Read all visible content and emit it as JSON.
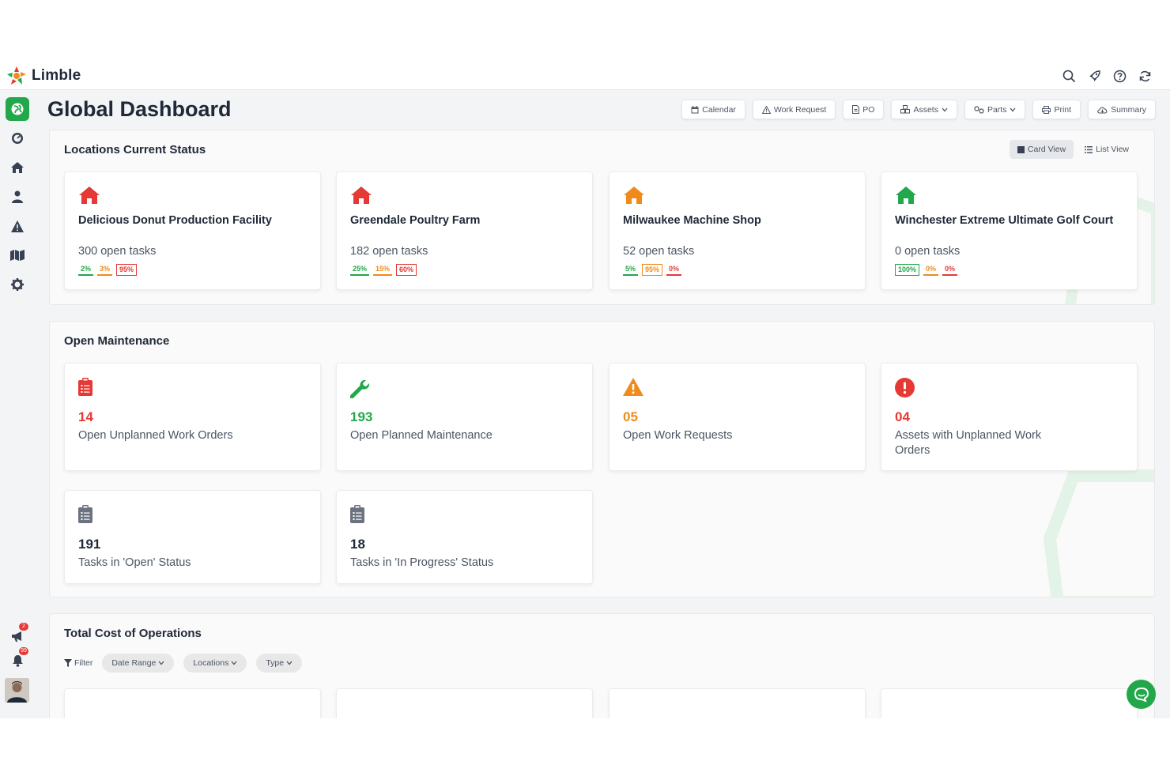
{
  "app": {
    "name": "Limble"
  },
  "header": {
    "title": "Global Dashboard",
    "toolbar": [
      {
        "label": "Calendar",
        "icon": "calendar-icon"
      },
      {
        "label": "Work Request",
        "icon": "warning-icon"
      },
      {
        "label": "PO",
        "icon": "document-icon"
      },
      {
        "label": "Assets",
        "icon": "cubes-icon"
      },
      {
        "label": "Parts",
        "icon": "gears-icon"
      },
      {
        "label": "Print",
        "icon": "printer-icon"
      },
      {
        "label": "Summary",
        "icon": "cloud-icon"
      }
    ]
  },
  "sidebar": {
    "items": [
      "globe-icon",
      "dashboard-icon",
      "home-icon",
      "user-icon",
      "warning-icon",
      "map-icon",
      "gear-icon"
    ],
    "bottom": [
      {
        "icon": "megaphone-icon",
        "badge": "2"
      },
      {
        "icon": "bell-icon",
        "badge": "99"
      }
    ]
  },
  "locations": {
    "title": "Locations Current Status",
    "views": [
      "Card View",
      "List View"
    ],
    "cards": [
      {
        "name": "Delicious Donut Production Facility",
        "tasks": "300 open tasks",
        "color": "#e53935",
        "pcts": [
          "2%",
          "3%",
          "95%"
        ]
      },
      {
        "name": "Greendale Poultry Farm",
        "tasks": "182 open tasks",
        "color": "#e53935",
        "pcts": [
          "25%",
          "15%",
          "60%"
        ]
      },
      {
        "name": "Milwaukee Machine Shop",
        "tasks": "52 open tasks",
        "color": "#f08a1c",
        "pcts": [
          "5%",
          "95%",
          "0%"
        ]
      },
      {
        "name": "Winchester Extreme Ultimate Golf Court",
        "tasks": "0 open tasks",
        "color": "#22a84a",
        "pcts": [
          "100%",
          "0%",
          "0%"
        ]
      }
    ]
  },
  "maintenance": {
    "title": "Open Maintenance",
    "cards": [
      {
        "count": "14",
        "label": "Open Unplanned Work Orders",
        "icon": "clipboard-icon",
        "color": "#e53935"
      },
      {
        "count": "193",
        "label": "Open Planned Maintenance",
        "icon": "wrench-icon",
        "color": "#22a84a"
      },
      {
        "count": "05",
        "label": "Open Work Requests",
        "icon": "warning-icon",
        "color": "#f08a1c"
      },
      {
        "count": "04",
        "label": "Assets with Unplanned Work Orders",
        "icon": "alert-circle-icon",
        "color": "#e53935"
      },
      {
        "count": "191",
        "label": "Tasks in 'Open' Status",
        "icon": "clipboard-icon",
        "color": "#1f2937"
      },
      {
        "count": "18",
        "label": "Tasks in 'In Progress' Status",
        "icon": "clipboard-icon",
        "color": "#1f2937"
      }
    ]
  },
  "costs": {
    "title": "Total Cost of Operations",
    "filter_label": "Filter",
    "chips": [
      "Date Range",
      "Locations",
      "Type"
    ]
  }
}
